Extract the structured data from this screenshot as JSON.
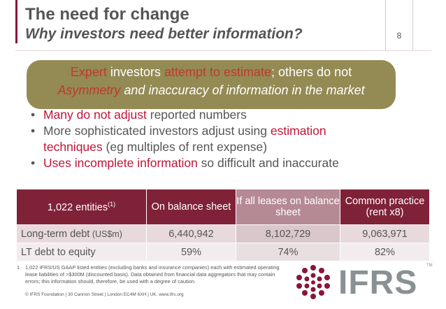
{
  "header": {
    "title": "The need for change",
    "subtitle": "Why investors need better information?",
    "page_number": "8"
  },
  "banner": {
    "line1_a": "Expert",
    "line1_b": " investors ",
    "line1_c": "attempt to estimate",
    "line1_d": "; others do not",
    "line2_a": "Asymmetry",
    "line2_b": " and inaccuracy of information in the market"
  },
  "bullets": {
    "b1_red": "Many do not adjust",
    "b1_rest": " reported numbers",
    "b2_pre": "More sophisticated investors adjust using ",
    "b2_red1": "estimation",
    "b2_red2": "techniques",
    "b2_rest": " (eg multiples of rent expense)",
    "b3_red": "Uses incomplete information",
    "b3_rest": " so difficult and inaccurate"
  },
  "table": {
    "header": {
      "entities_label": "1,022 entities",
      "entities_sup": "(1)",
      "col1": "On balance sheet",
      "col2": "If all leases on balance sheet",
      "col3": "Common practice (rent x8)"
    },
    "rows": [
      {
        "label": "Long-term debt",
        "unit": " (US$m)",
        "c1": "6,440,942",
        "c2": "8,102,729",
        "c3": "9,063,971"
      },
      {
        "label": "LT debt to equity",
        "unit": "",
        "c1": "59%",
        "c2": "74%",
        "c3": "82%"
      }
    ]
  },
  "footnote": {
    "mark": "1",
    "text": "1,022 IFRS/US GAAP listed entities (excluding banks and insurance companies) each with estimated operating lease liabilities of >$300M (discounted basis). Data obtained from financial data aggregators that may contain errors; this information should, therefore, be used with a degree of caution."
  },
  "footer": {
    "text": "© IFRS Foundation | 30 Cannon Street | London EC4M 6XH | UK. www.ifrs.org"
  },
  "logo": {
    "text": "IFRS",
    "tm": "TM"
  },
  "colors": {
    "accent": "#8a1538",
    "banner": "#948a54",
    "highlight_text": "#c0153a"
  }
}
